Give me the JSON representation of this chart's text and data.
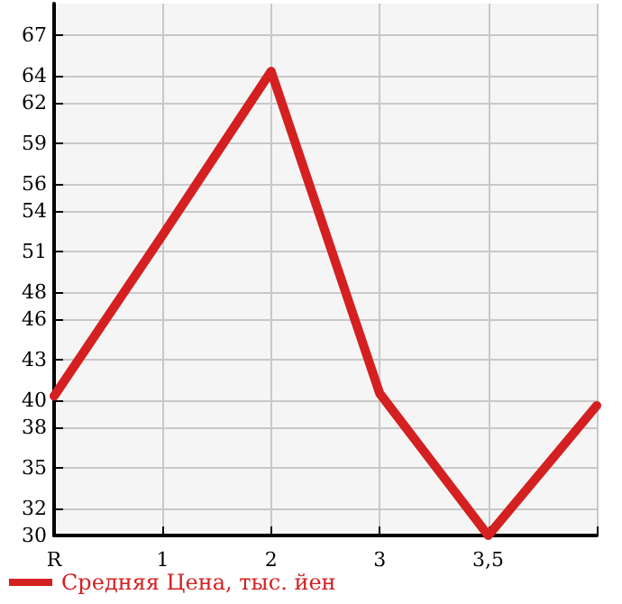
{
  "chart_data": {
    "type": "line",
    "categories": [
      "R",
      "1",
      "2",
      "3",
      "3,5",
      null
    ],
    "series": [
      {
        "name": "Средняя Цена, тыс. йен",
        "color": "#d42020",
        "values": [
          40.3,
          52.2,
          64.3,
          40.5,
          30,
          39.6
        ]
      }
    ],
    "ylim": [
      30,
      69.3
    ],
    "yticks": [
      30,
      32,
      35,
      38,
      40,
      43,
      46,
      48,
      51,
      54,
      56,
      59,
      62,
      64,
      67
    ],
    "grid": true,
    "legend": "bottom left",
    "marker": "none",
    "line_style": "solid"
  }
}
